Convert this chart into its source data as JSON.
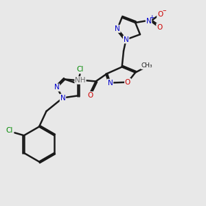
{
  "bg_color": "#e8e8e8",
  "bond_color": "#1a1a1a",
  "bond_width": 1.8,
  "atom_colors": {
    "C": "#1a1a1a",
    "N": "#0000cc",
    "O": "#cc0000",
    "Cl": "#008800",
    "H": "#666666"
  },
  "figsize": [
    3.0,
    3.0
  ],
  "dpi": 100
}
